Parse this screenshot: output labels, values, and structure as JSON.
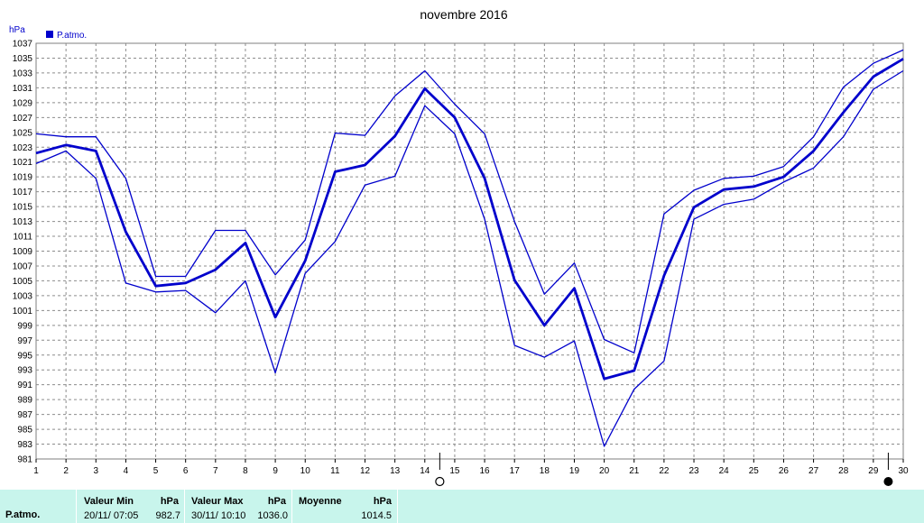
{
  "chart_data": {
    "type": "line",
    "title": "novembre 2016",
    "ylabel": "hPa",
    "legend": [
      "P.atmo."
    ],
    "legend_position": "top-left",
    "grid": true,
    "ylim": [
      981,
      1037
    ],
    "yticks": [
      981,
      983,
      985,
      987,
      989,
      991,
      993,
      995,
      997,
      999,
      1001,
      1003,
      1005,
      1007,
      1009,
      1011,
      1013,
      1015,
      1017,
      1019,
      1021,
      1023,
      1025,
      1027,
      1029,
      1031,
      1033,
      1035,
      1037
    ],
    "x": [
      1,
      2,
      3,
      4,
      5,
      6,
      7,
      8,
      9,
      10,
      11,
      12,
      13,
      14,
      15,
      16,
      17,
      18,
      19,
      20,
      21,
      22,
      23,
      24,
      25,
      26,
      27,
      28,
      29,
      30
    ],
    "series": [
      {
        "role": "max",
        "width": 1.3,
        "values": [
          1024.8,
          1024.4,
          1024.4,
          1018.8,
          1005.6,
          1005.6,
          1011.8,
          1011.8,
          1005.8,
          1010.5,
          1024.9,
          1024.6,
          1029.9,
          1033.3,
          1028.8,
          1024.8,
          1013.0,
          1003.2,
          1007.4,
          997.1,
          995.3,
          1014.0,
          1017.2,
          1018.8,
          1019.1,
          1020.4,
          1024.4,
          1031.1,
          1034.3,
          1036.1
        ]
      },
      {
        "role": "mean",
        "width": 2.8,
        "values": [
          1022.2,
          1023.3,
          1022.5,
          1011.6,
          1004.3,
          1004.7,
          1006.5,
          1010.1,
          1000.1,
          1007.7,
          1019.7,
          1020.6,
          1024.5,
          1030.9,
          1027.0,
          1018.8,
          1005.1,
          999.0,
          1004.0,
          991.8,
          992.9,
          1005.7,
          1014.9,
          1017.3,
          1017.7,
          1019.0,
          1022.5,
          1027.7,
          1032.5,
          1034.9
        ]
      },
      {
        "role": "min",
        "width": 1.3,
        "values": [
          1020.8,
          1022.5,
          1018.8,
          1004.7,
          1003.5,
          1003.7,
          1000.7,
          1005.0,
          992.6,
          1006.0,
          1010.3,
          1017.9,
          1019.1,
          1028.6,
          1024.8,
          1013.3,
          996.3,
          994.7,
          996.9,
          982.7,
          990.4,
          994.2,
          1013.3,
          1015.3,
          1016.0,
          1018.3,
          1020.2,
          1024.4,
          1030.8,
          1033.3
        ]
      }
    ],
    "line_color": "#0000cc",
    "new_moon_day": 29,
    "full_moon_day": 14
  },
  "stats": {
    "row_label": "P.atmo.",
    "min": {
      "header": "Valeur Min",
      "unit": "hPa",
      "datetime": "20/11/  07:05",
      "value": "982.7"
    },
    "max": {
      "header": "Valeur Max",
      "unit": "hPa",
      "datetime": "30/11/  10:10",
      "value": "1036.0"
    },
    "mean": {
      "header": "Moyenne",
      "unit": "hPa",
      "value": "1014.5"
    }
  }
}
